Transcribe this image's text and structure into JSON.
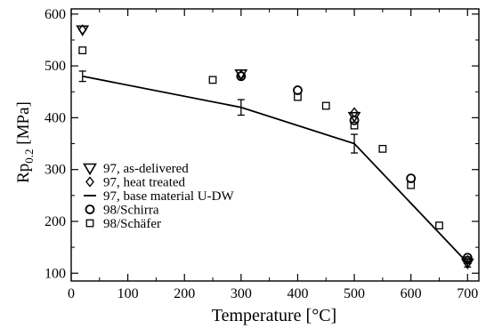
{
  "chart_data": {
    "type": "scatter",
    "xlabel": "Temperature [°C]",
    "ylabel": {
      "main": "Rp",
      "sub": "0.2",
      "unit": " [MPa]"
    },
    "xlim": [
      0,
      720
    ],
    "ylim": [
      85,
      610
    ],
    "xticks": [
      0,
      100,
      200,
      300,
      400,
      500,
      600,
      700
    ],
    "yticks": [
      100,
      200,
      300,
      400,
      500,
      600
    ],
    "legend_position": "left",
    "series": [
      {
        "name": "97, as-delivered",
        "marker": "triangle-down",
        "x": [
          20,
          300,
          500,
          700
        ],
        "y": [
          570,
          485,
          403,
          120
        ]
      },
      {
        "name": "97, heat treated",
        "marker": "diamond",
        "x": [
          20,
          300,
          500,
          700
        ],
        "y": [
          570,
          482,
          410,
          125
        ]
      },
      {
        "name": "97,  base material U-DW",
        "marker": "line",
        "x": [
          20,
          300,
          500,
          700
        ],
        "y": [
          480,
          420,
          350,
          120
        ],
        "yerr": [
          10,
          15,
          18,
          8
        ]
      },
      {
        "name": "98/Schirra",
        "marker": "circle",
        "x": [
          300,
          400,
          500,
          600,
          700
        ],
        "y": [
          480,
          453,
          395,
          283,
          130
        ]
      },
      {
        "name": "98/Schäfer",
        "marker": "square",
        "x": [
          20,
          250,
          400,
          450,
          500,
          550,
          600,
          650,
          700
        ],
        "y": [
          530,
          473,
          440,
          423,
          385,
          340,
          270,
          192,
          125
        ]
      }
    ]
  }
}
